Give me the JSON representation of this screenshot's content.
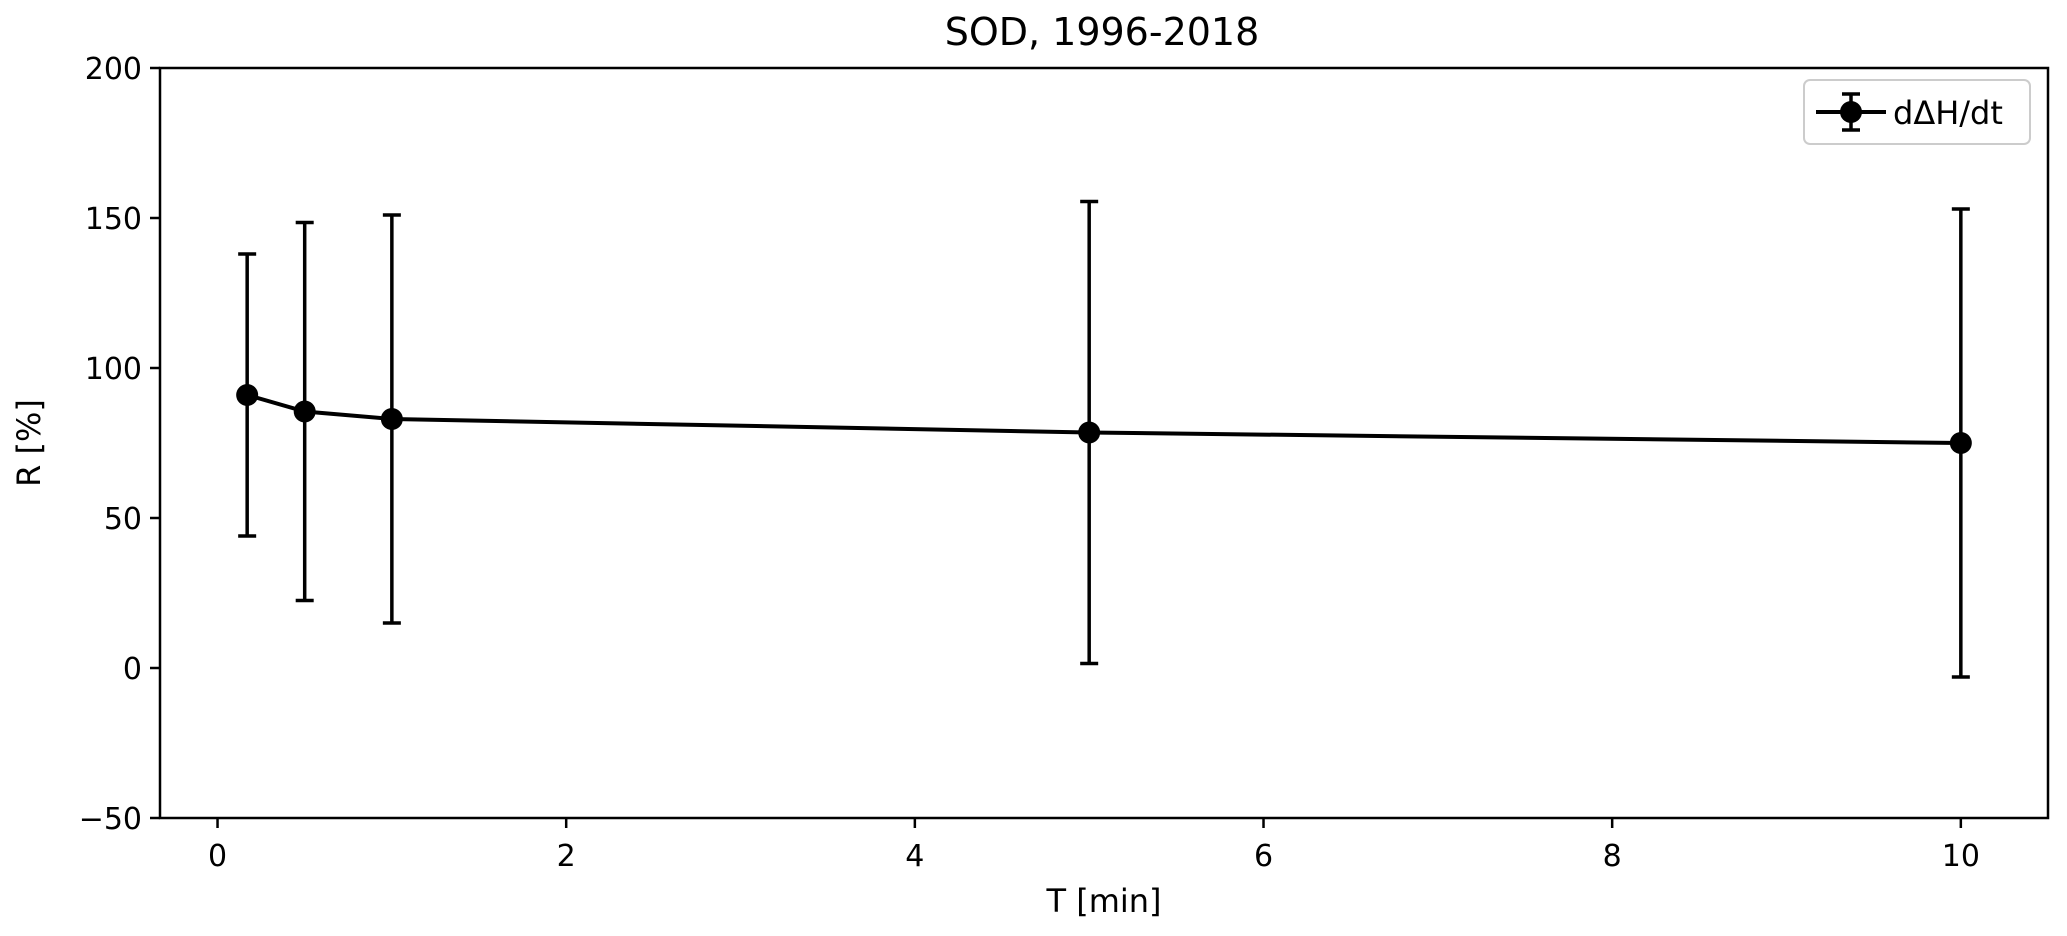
{
  "chart_data": {
    "type": "line",
    "title": "SOD, 1996-2018",
    "xlabel": "T [min]",
    "ylabel": "R [%]",
    "xlim": [
      -0.33,
      10.5
    ],
    "ylim": [
      -50,
      200
    ],
    "xticks": [
      0,
      2,
      4,
      6,
      8,
      10
    ],
    "yticks": [
      -50,
      0,
      50,
      100,
      150,
      200
    ],
    "grid": false,
    "legend_position": "top-right",
    "series": [
      {
        "name": "dΔH/dt",
        "color": "#000000",
        "x": [
          0.17,
          0.5,
          1,
          5,
          10
        ],
        "y": [
          91,
          85.5,
          83,
          78.5,
          75
        ],
        "err_low": [
          44,
          22.5,
          15,
          1.5,
          -3
        ],
        "err_high": [
          138,
          148.5,
          151,
          155.5,
          153
        ]
      }
    ]
  }
}
